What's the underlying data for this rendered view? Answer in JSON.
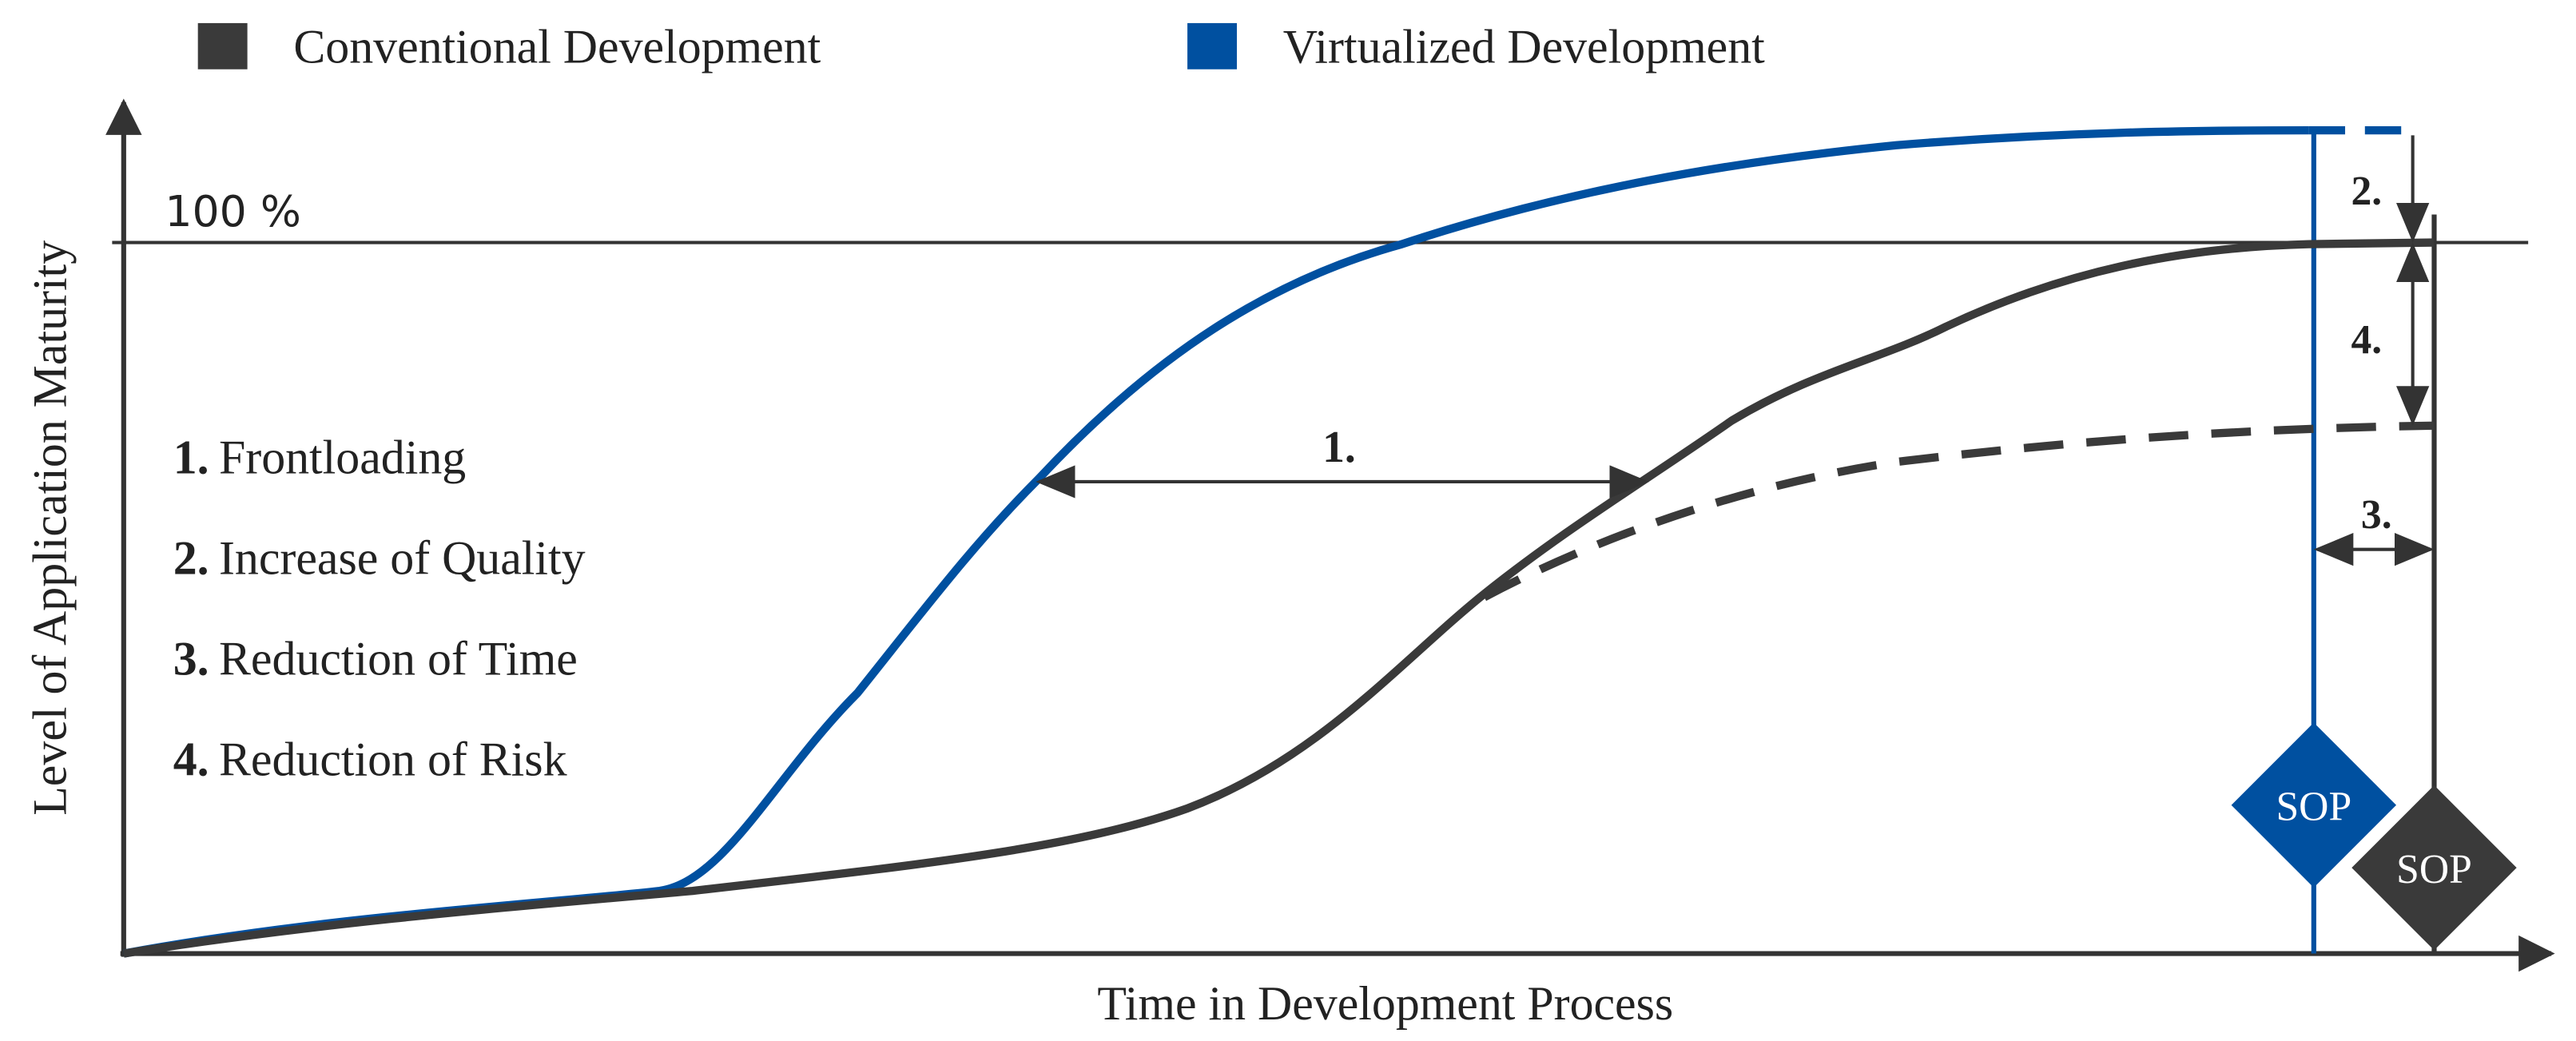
{
  "legend": [
    {
      "label": "Conventional Development"
    },
    {
      "label": "Virtualized Development"
    }
  ],
  "axes": {
    "y_label": "Level of Application Maturity",
    "x_label": "Time in Development Process"
  },
  "reference_label": "100 %",
  "list": [
    {
      "number": "1.",
      "text": "Frontloading"
    },
    {
      "number": "2.",
      "text": "Increase of Quality"
    },
    {
      "number": "3.",
      "text": "Reduction of Time"
    },
    {
      "number": "4.",
      "text": "Reduction of Risk"
    }
  ],
  "annotations": [
    "1.",
    "2.",
    "3.",
    "4."
  ],
  "milestones": [
    {
      "label": "SOP"
    },
    {
      "label": "SOP"
    }
  ]
}
